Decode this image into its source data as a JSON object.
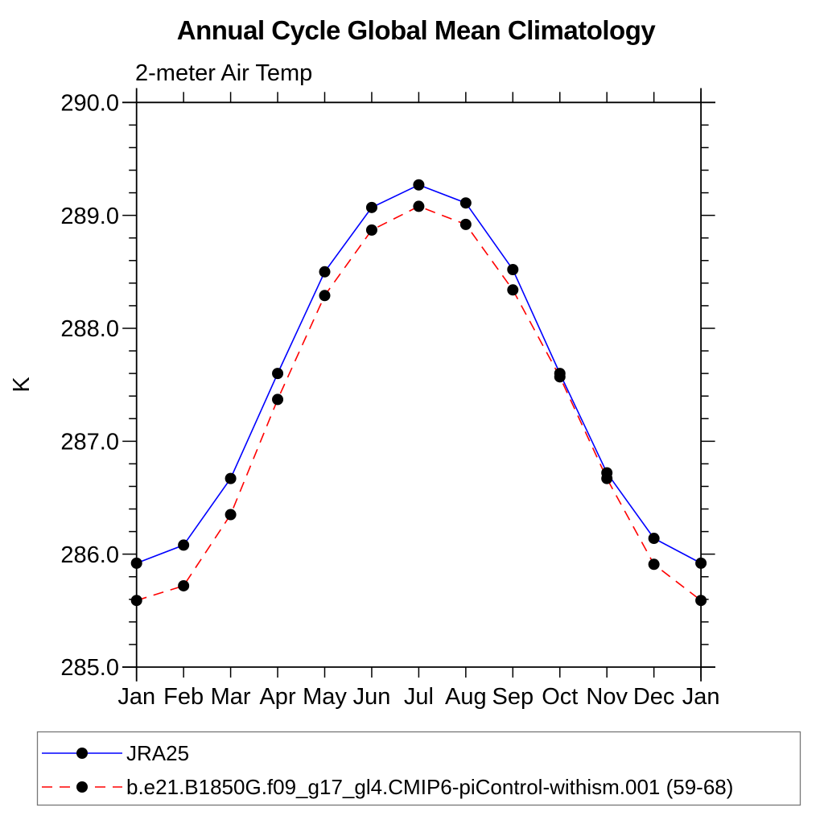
{
  "page": {
    "background_color": "#ffffff"
  },
  "chart_data": {
    "type": "line",
    "title": "Annual Cycle Global Mean Climatology",
    "subtitle": "2-meter Air Temp",
    "ylabel": "K",
    "xlabel": "",
    "x_tick_labels": [
      "Jan",
      "Feb",
      "Mar",
      "Apr",
      "May",
      "Jun",
      "Jul",
      "Aug",
      "Sep",
      "Oct",
      "Nov",
      "Dec",
      "Jan"
    ],
    "y_tick_labels": [
      "285.0",
      "286.0",
      "287.0",
      "288.0",
      "289.0",
      "290.0"
    ],
    "y_ticks": [
      285.0,
      286.0,
      287.0,
      288.0,
      289.0,
      290.0
    ],
    "ylim": [
      285.0,
      290.0
    ],
    "y_minor_step": 0.2,
    "grid": false,
    "legend_position": "bottom-left boxed",
    "marker_color": "#000000",
    "axis_color": "#000000",
    "series": [
      {
        "name": "JRA25",
        "color": "#0000ff",
        "line_style": "solid",
        "marker": "filled-circle",
        "values": [
          285.92,
          286.08,
          286.67,
          287.6,
          288.5,
          289.07,
          289.27,
          289.11,
          288.52,
          287.6,
          286.72,
          286.14,
          285.92
        ]
      },
      {
        "name": "b.e21.B1850G.f09_g17_gl4.CMIP6-piControl-withism.001 (59-68)",
        "color": "#ff0000",
        "line_style": "dashed",
        "marker": "filled-circle",
        "values": [
          285.59,
          285.72,
          286.35,
          287.37,
          288.29,
          288.87,
          289.08,
          288.92,
          288.34,
          287.57,
          286.67,
          285.91,
          285.59
        ]
      }
    ]
  }
}
